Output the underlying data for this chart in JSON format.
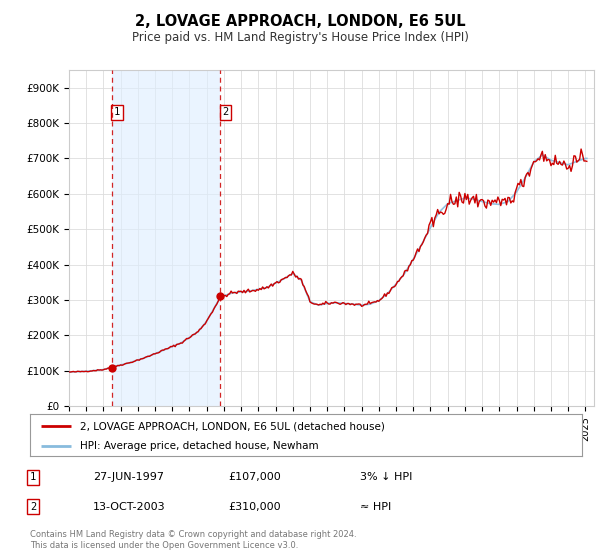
{
  "title": "2, LOVAGE APPROACH, LONDON, E6 5UL",
  "subtitle": "Price paid vs. HM Land Registry's House Price Index (HPI)",
  "background_color": "#ffffff",
  "plot_bg_color": "#ffffff",
  "grid_color": "#dddddd",
  "hpi_fill_color": "#ddeeff",
  "sale1": {
    "date_num": 1997.49,
    "price": 107000,
    "label": "1",
    "date_str": "27-JUN-1997",
    "price_str": "£107,000",
    "relation": "3% ↓ HPI"
  },
  "sale2": {
    "date_num": 2003.79,
    "price": 310000,
    "label": "2",
    "date_str": "13-OCT-2003",
    "price_str": "£310,000",
    "relation": "≈ HPI"
  },
  "vline1_x": 1997.49,
  "vline2_x": 2003.79,
  "xmin": 1995.0,
  "xmax": 2025.5,
  "ymin": 0,
  "ymax": 950000,
  "yticks": [
    0,
    100000,
    200000,
    300000,
    400000,
    500000,
    600000,
    700000,
    800000,
    900000
  ],
  "ytick_labels": [
    "£0",
    "£100K",
    "£200K",
    "£300K",
    "£400K",
    "£500K",
    "£600K",
    "£700K",
    "£800K",
    "£900K"
  ],
  "xticks": [
    1995,
    1996,
    1997,
    1998,
    1999,
    2000,
    2001,
    2002,
    2003,
    2004,
    2005,
    2006,
    2007,
    2008,
    2009,
    2010,
    2011,
    2012,
    2013,
    2014,
    2015,
    2016,
    2017,
    2018,
    2019,
    2020,
    2021,
    2022,
    2023,
    2024,
    2025
  ],
  "line_color": "#cc0000",
  "hpi_line_color": "#88bbdd",
  "marker_color": "#cc0000",
  "legend_line1": "2, LOVAGE APPROACH, LONDON, E6 5UL (detached house)",
  "legend_line2": "HPI: Average price, detached house, Newham",
  "footer1": "Contains HM Land Registry data © Crown copyright and database right 2024.",
  "footer2": "This data is licensed under the Open Government Licence v3.0."
}
